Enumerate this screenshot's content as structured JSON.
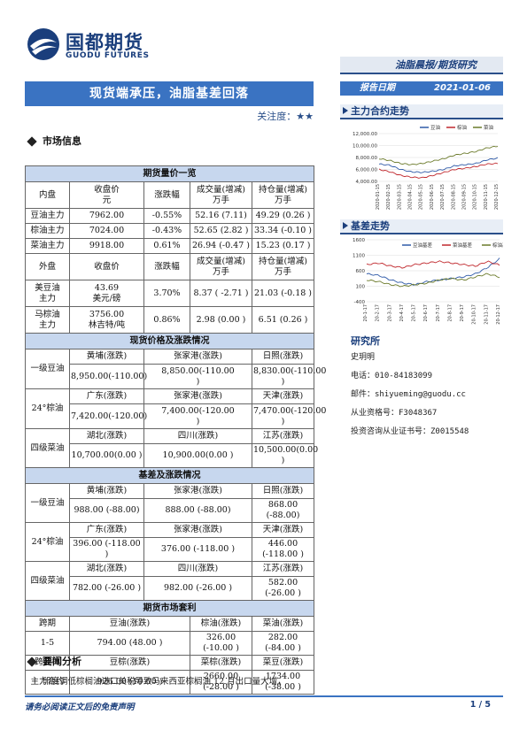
{
  "header": {
    "logo_cn": "国都期货",
    "logo_en": "GUODU FUTURES",
    "tag": "油脂晨报/期货研究",
    "title": "现货端承压，油脂基差回落",
    "report_label": "报告日期",
    "report_date": "2021-01-06",
    "attention_label": "关注度：",
    "attention_stars": "★★"
  },
  "sections": {
    "market": "市场信息",
    "news": "要闻分析"
  },
  "futures_table": {
    "title": "期货量价一览",
    "inner_headers": [
      "内盘",
      "收盘价\n元",
      "涨跌幅",
      "成交量(增减)\n万手",
      "持仓量(增减)\n万手"
    ],
    "inner_rows": [
      [
        "豆油主力",
        "7962.00",
        "-0.55%",
        "52.16 (7.11)",
        "49.29 (0.26 )"
      ],
      [
        "棕油主力",
        "7024.00",
        "-0.43%",
        "52.65 (2.82 )",
        "33.34 (-0.10 )"
      ],
      [
        "菜油主力",
        "9918.00",
        "0.61%",
        "26.94 (-0.47 )",
        "15.23 (0.17 )"
      ]
    ],
    "outer_headers": [
      "外盘",
      "收盘价",
      "涨跌幅",
      "成交量(增减)\n万手",
      "持仓量(增减)\n万手"
    ],
    "outer_rows": [
      [
        "美豆油\n主力",
        "43.69\n美元/磅",
        "3.70%",
        "8.37 ( -2.71 )",
        "21.03 (-0.18 )"
      ],
      [
        "马棕油\n主力",
        "3756.00\n林吉特/吨",
        "0.86%",
        "2.98 (0.00 )",
        "6.51 (0.26 )"
      ]
    ]
  },
  "spot_table": {
    "title": "现货价格及涨跌情况",
    "groups": [
      {
        "name": "一级豆油",
        "regions": [
          "黄埔(涨跌)",
          "张家港(涨跌)",
          "日照(涨跌)"
        ],
        "values": [
          "8,950.00(-110.00)",
          "8,850.00(-110.00\n)",
          "8,830.00(-110.00\n)"
        ]
      },
      {
        "name": "24°棕油",
        "regions": [
          "广东(涨跌)",
          "张家港(涨跌)",
          "天津(涨跌)"
        ],
        "values": [
          "7,420.00(-120.00)",
          "7,400.00(-120.00\n)",
          "7,470.00(-120.00\n)"
        ]
      },
      {
        "name": "四级菜油",
        "regions": [
          "湖北(涨跌)",
          "四川(涨跌)",
          "江苏(涨跌)"
        ],
        "values": [
          "10,700.00(0.00 )",
          "10,900.00(0.00 )",
          "10,500.00(0.00 )"
        ]
      }
    ]
  },
  "basis_table": {
    "title": "基差及涨跌情况",
    "groups": [
      {
        "name": "一级豆油",
        "regions": [
          "黄埔(涨跌)",
          "张家港(涨跌)",
          "日照(涨跌)"
        ],
        "values": [
          "988.00 (-88.00)",
          "888.00 (-88.00)",
          "868.00 (-88.00)"
        ]
      },
      {
        "name": "24°棕油",
        "regions": [
          "广东(涨跌)",
          "张家港(涨跌)",
          "天津(涨跌)"
        ],
        "values": [
          "396.00 (-118.00 )",
          "376.00 (-118.00 )",
          "446.00 (-118.00 )"
        ]
      },
      {
        "name": "四级菜油",
        "regions": [
          "湖北(涨跌)",
          "四川(涨跌)",
          "江苏(涨跌)"
        ],
        "values": [
          "782.00 (-26.00 )",
          "982.00 (-26.00 )",
          "582.00 (-26.00 )"
        ]
      }
    ]
  },
  "arb_table": {
    "title": "期货市场套利",
    "row1_head": [
      "跨期",
      "豆油(涨跌)",
      "棕油(涨跌)",
      "菜油(涨跌)"
    ],
    "row1_vals": [
      "1-5",
      "794.00 (48.00 )",
      "326.00 (-10.00 )",
      "282.00 (-84.00 )"
    ],
    "row2_head": [
      "跨品种",
      "豆棕(涨跌)",
      "菜棕(涨跌)",
      "菜豆(涨跌)"
    ],
    "row2_vals": [
      "主力合约",
      "926.00 (10.00 )",
      "2660.00 (-28.00 )",
      "1734.00 (-38.00 )"
    ]
  },
  "chart_main": {
    "section_title": "主力合约走势",
    "chart_data": {
      "type": "line",
      "legend": [
        "豆油",
        "棕油",
        "菜油"
      ],
      "yticks": [
        "12,000.00",
        "10,000.00",
        "8,000.00",
        "6,000.00",
        "4,000.00"
      ],
      "ylim": [
        4000,
        12000
      ],
      "xticks": [
        "2020-01-15",
        "2020-02-15",
        "2020-03-15",
        "2020-04-15",
        "2020-05-15",
        "2020-06-15",
        "2020-07-15",
        "2020-08-15",
        "2020-09-15",
        "2020-10-15",
        "2020-11-15",
        "2020-12-15"
      ],
      "series": [
        {
          "name": "豆油",
          "color": "#2f5aa8",
          "values": [
            6900,
            6700,
            6000,
            5600,
            5500,
            5700,
            6000,
            6600,
            6800,
            7000,
            7600,
            7900
          ]
        },
        {
          "name": "棕油",
          "color": "#c0282d",
          "values": [
            6000,
            5600,
            5000,
            4700,
            4600,
            5000,
            5500,
            6000,
            6200,
            6500,
            6900,
            7000
          ]
        },
        {
          "name": "菜油",
          "color": "#6b7a2a",
          "values": [
            7800,
            7500,
            7000,
            6800,
            7000,
            7400,
            7800,
            8400,
            8700,
            9000,
            9600,
            9900
          ]
        }
      ]
    }
  },
  "chart_basis": {
    "section_title": "基差走势",
    "chart_data": {
      "type": "line",
      "legend": [
        "豆油基差",
        "菜油基差",
        "棕油基差"
      ],
      "yticks": [
        "1600",
        "1100",
        "600",
        "100",
        "-400"
      ],
      "ylim": [
        -400,
        1600
      ],
      "xticks": [
        "20-1-17",
        "20-2-17",
        "20-3-17",
        "20-4-17",
        "20-5-17",
        "20-6-17",
        "20-7-17",
        "20-8-17",
        "20-9-17",
        "20-10-17",
        "20-11-17",
        "20-12-17"
      ],
      "series": [
        {
          "name": "豆油基差",
          "color": "#2f5aa8",
          "values": [
            500,
            450,
            300,
            200,
            150,
            250,
            300,
            350,
            400,
            500,
            700,
            988
          ]
        },
        {
          "name": "菜油基差",
          "color": "#c0282d",
          "values": [
            800,
            850,
            750,
            700,
            800,
            850,
            900,
            850,
            800,
            750,
            900,
            782
          ]
        },
        {
          "name": "棕油基差",
          "color": "#6b7a2a",
          "values": [
            300,
            250,
            150,
            100,
            150,
            200,
            300,
            350,
            300,
            400,
            500,
            396
          ]
        }
      ]
    }
  },
  "research": {
    "title": "研究所",
    "lines": [
      "史玥明",
      "电话：010-84183099",
      "邮件：shiyueming@guodu.cc",
      "从业资格号：F3048367",
      "投资咨询从业证书号：Z0015548"
    ]
  },
  "news": {
    "text": "印度调低棕榈油进口关税导致马来西亚棕榈油 12 月出口量大增，"
  },
  "footer": {
    "disclaimer": "请务必阅读正文后的免责声明",
    "page": "1 / 5"
  }
}
